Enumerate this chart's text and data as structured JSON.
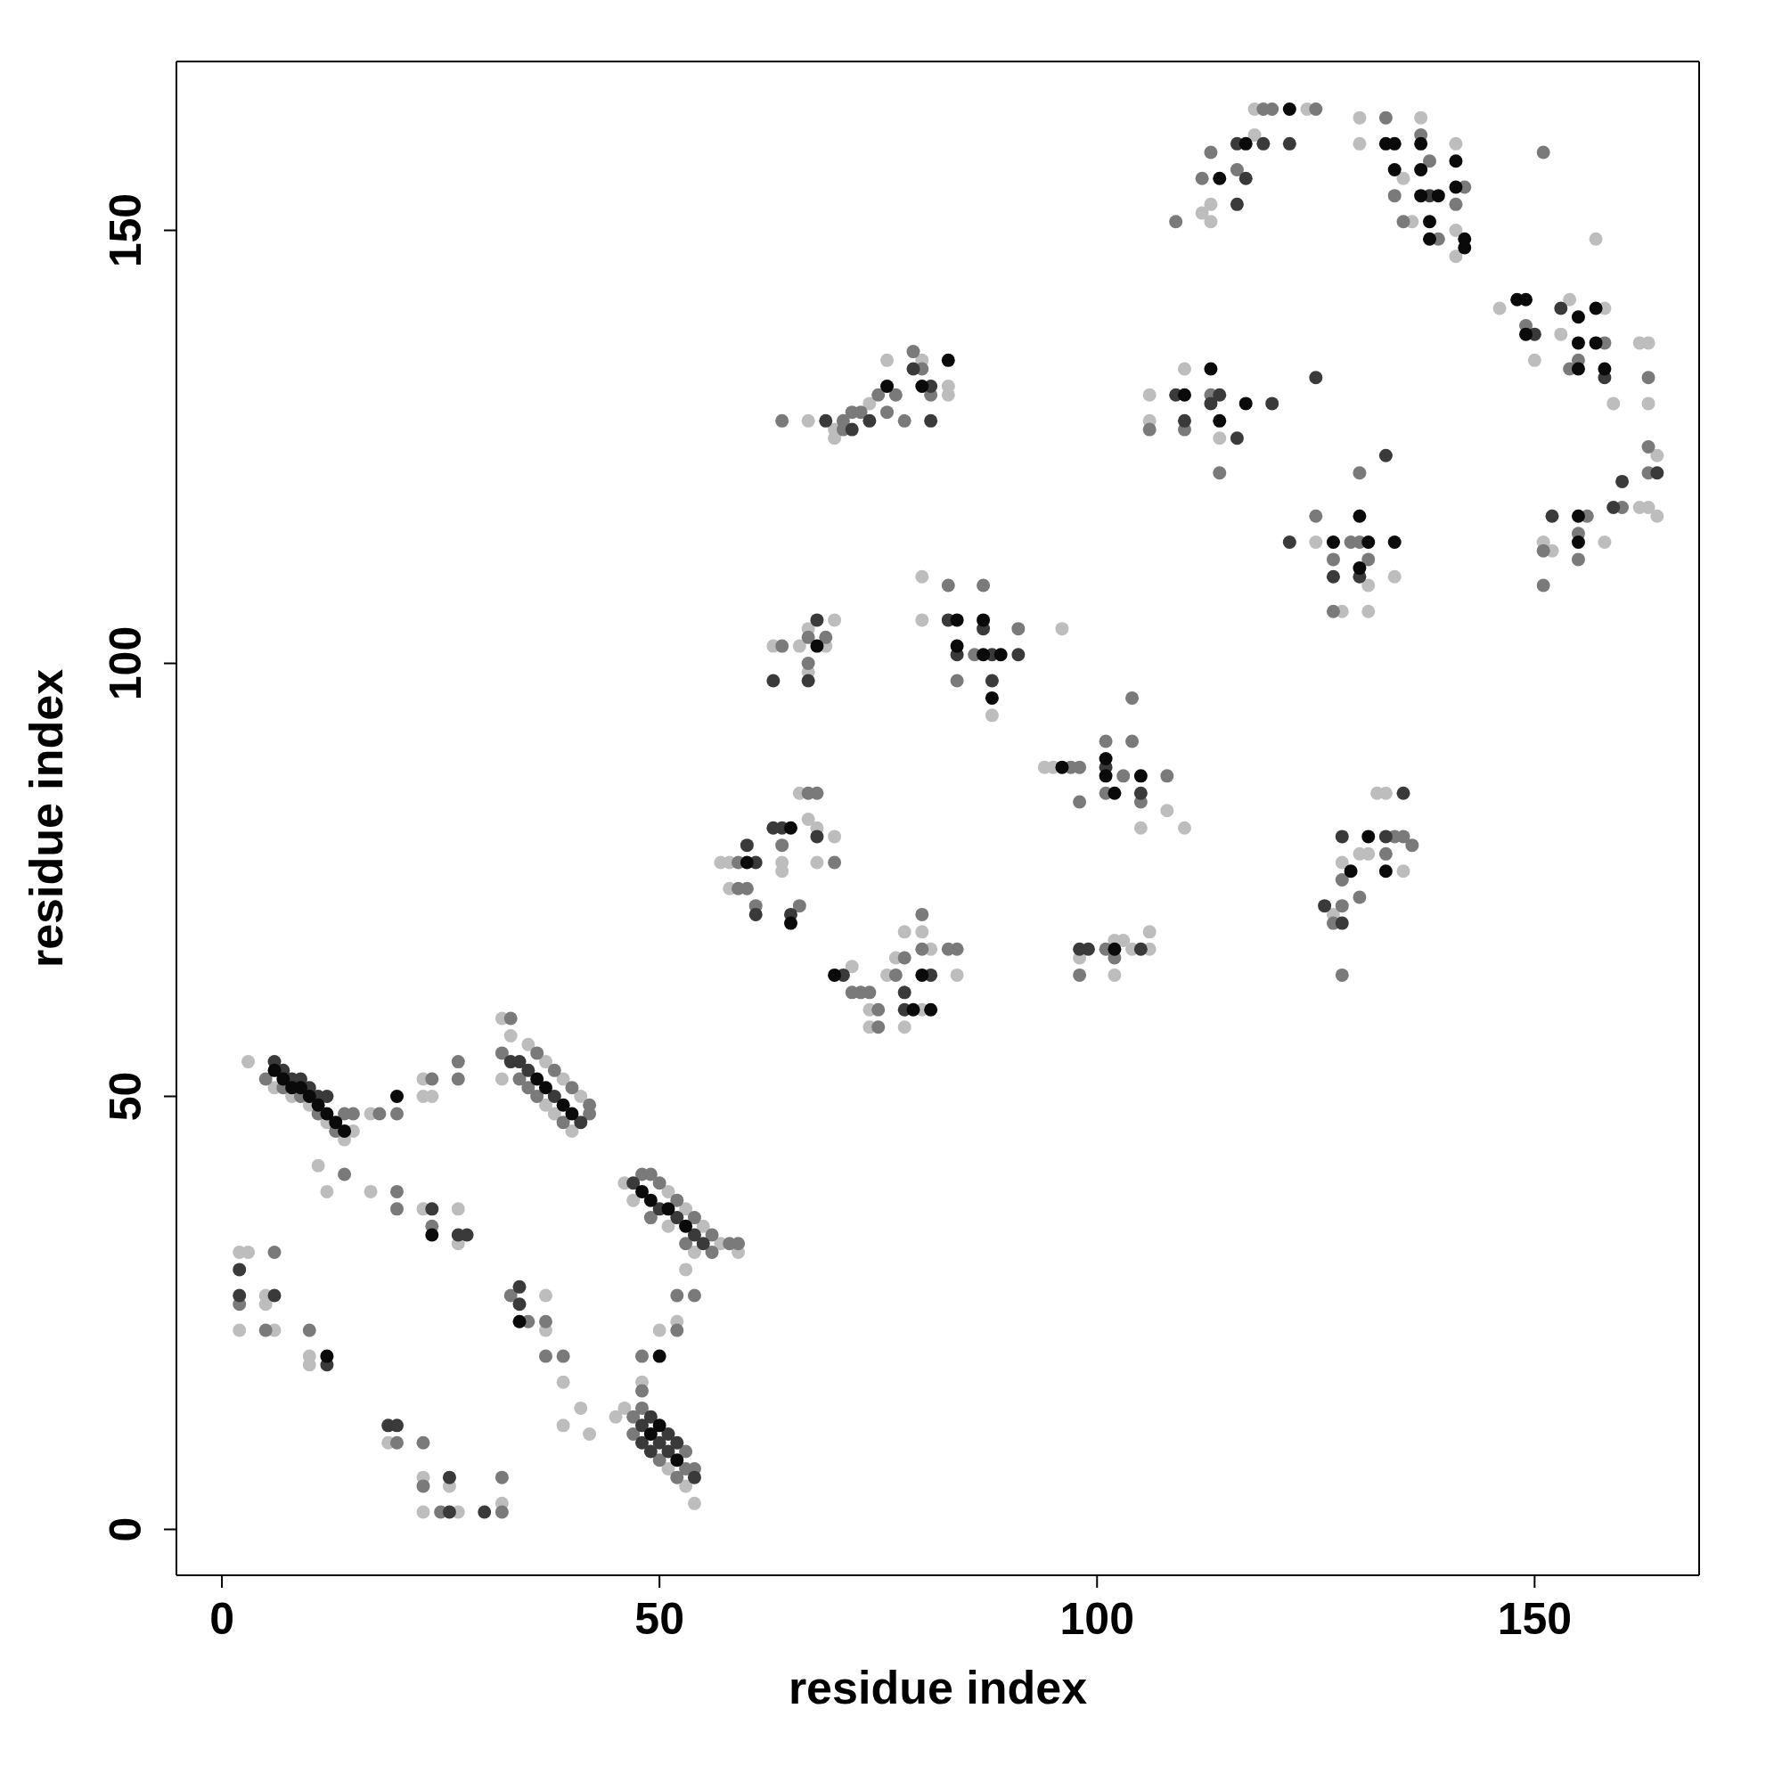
{
  "chart_data": {
    "type": "scatter",
    "xlabel": "residue index",
    "ylabel": "residue index",
    "xlim": [
      -5.2,
      168.8
    ],
    "ylim": [
      -5.3,
      169.5
    ],
    "xticks": [
      0,
      50,
      100,
      150
    ],
    "yticks": [
      0,
      50,
      100,
      150
    ],
    "marker": "circle",
    "series": [
      {
        "color": "#bdbdbd",
        "x": [
          3,
          6,
          8,
          10,
          12,
          14,
          15,
          17,
          23,
          23,
          24,
          11,
          12,
          17,
          23,
          27,
          27,
          32,
          33,
          35,
          37,
          39,
          41,
          37,
          38,
          40,
          32,
          46,
          51,
          53,
          55,
          57,
          59,
          47,
          51,
          54,
          2,
          3,
          2,
          5,
          5,
          6,
          10,
          10,
          19,
          23,
          23,
          26,
          27,
          32,
          37,
          37,
          39,
          39,
          41,
          42,
          45,
          46,
          51,
          53,
          54,
          48,
          50,
          52,
          53,
          57,
          58,
          58,
          64,
          64,
          66,
          67,
          68,
          70,
          68,
          72,
          74,
          74,
          76,
          77,
          78,
          78,
          80,
          81,
          84,
          80,
          63,
          66,
          67,
          67,
          70,
          69,
          80,
          80,
          88,
          96,
          94,
          95,
          105,
          108,
          110,
          98,
          102,
          102,
          103,
          104,
          106,
          106,
          127,
          128,
          130,
          131,
          132,
          133,
          135,
          125,
          128,
          131,
          131,
          134,
          106,
          106,
          110,
          114,
          112,
          113,
          113,
          118,
          118,
          124,
          130,
          130,
          135,
          136,
          137,
          141,
          141,
          141,
          157,
          146,
          150,
          153,
          154,
          158,
          159,
          162,
          163,
          163,
          164,
          163,
          164,
          151,
          152,
          158,
          162,
          67,
          70,
          70,
          74,
          80,
          83,
          83,
          76
        ],
        "values": [
          54,
          51,
          50,
          49,
          47,
          45,
          46,
          48,
          52,
          50,
          50,
          42,
          39,
          39,
          37,
          37,
          33,
          59,
          57,
          56,
          54,
          52,
          50,
          49,
          48,
          46,
          52,
          40,
          39,
          37,
          35,
          33,
          32,
          38,
          35,
          32,
          32,
          32,
          23,
          27,
          26,
          23,
          20,
          19,
          10,
          6,
          2,
          5,
          2,
          3,
          27,
          23,
          17,
          12,
          14,
          11,
          13,
          14,
          7,
          5,
          3,
          17,
          23,
          24,
          30,
          77,
          77,
          74,
          77,
          76,
          85,
          82,
          81,
          80,
          77,
          65,
          60,
          58,
          64,
          66,
          69,
          58,
          69,
          67,
          64,
          60,
          102,
          102,
          104,
          99,
          105,
          102,
          110,
          105,
          94,
          104,
          88,
          88,
          81,
          83,
          81,
          66,
          68,
          64,
          68,
          67,
          69,
          67,
          71,
          77,
          78,
          78,
          85,
          85,
          76,
          114,
          106,
          109,
          106,
          110,
          131,
          128,
          134,
          126,
          152,
          151,
          153,
          161,
          164,
          164,
          163,
          160,
          156,
          151,
          163,
          160,
          150,
          147,
          149,
          141,
          135,
          138,
          142,
          141,
          130,
          137,
          137,
          130,
          124,
          118,
          117,
          114,
          113,
          114,
          118,
          128,
          127,
          126,
          130,
          135,
          132,
          131,
          135
        ]
      },
      {
        "color": "#7a7a7a",
        "x": [
          5,
          7,
          9,
          11,
          13,
          14,
          15,
          18,
          20,
          24,
          27,
          27,
          14,
          20,
          20,
          24,
          33,
          32,
          36,
          38,
          40,
          34,
          35,
          36,
          39,
          42,
          42,
          48,
          49,
          50,
          52,
          54,
          56,
          58,
          59,
          49,
          53,
          56,
          2,
          6,
          5,
          10,
          20,
          23,
          23,
          25,
          32,
          32,
          33,
          35,
          37,
          37,
          39,
          47,
          53,
          47,
          50,
          52,
          48,
          53,
          54,
          48,
          48,
          52,
          52,
          54,
          59,
          59,
          60,
          61,
          64,
          66,
          67,
          68,
          70,
          72,
          73,
          74,
          75,
          75,
          77,
          78,
          80,
          80,
          83,
          84,
          64,
          67,
          67,
          69,
          83,
          84,
          86,
          87,
          91,
          97,
          98,
          98,
          101,
          101,
          103,
          104,
          104,
          105,
          108,
          98,
          101,
          102,
          127,
          128,
          128,
          128,
          130,
          133,
          134,
          135,
          136,
          125,
          127,
          127,
          129,
          130,
          131,
          130,
          106,
          110,
          113,
          114,
          109,
          112,
          113,
          116,
          119,
          120,
          125,
          133,
          134,
          135,
          137,
          138,
          139,
          141,
          142,
          151,
          149,
          155,
          154,
          158,
          163,
          163,
          163,
          151,
          151,
          155,
          155,
          156,
          160,
          64,
          71,
          71,
          72,
          73,
          75,
          76,
          77,
          78,
          79,
          80,
          81
        ],
        "values": [
          52,
          51,
          50,
          48,
          46,
          48,
          48,
          48,
          48,
          52,
          54,
          52,
          41,
          39,
          37,
          35,
          59,
          55,
          55,
          53,
          51,
          52,
          51,
          50,
          47,
          48,
          49,
          41,
          41,
          40,
          38,
          36,
          34,
          33,
          33,
          36,
          33,
          32,
          26,
          32,
          23,
          23,
          10,
          10,
          5,
          2,
          6,
          2,
          27,
          24,
          24,
          20,
          20,
          13,
          7,
          11,
          8,
          6,
          14,
          9,
          7,
          16,
          20,
          23,
          27,
          27,
          77,
          74,
          74,
          72,
          79,
          72,
          85,
          85,
          77,
          62,
          62,
          62,
          60,
          58,
          64,
          66,
          71,
          67,
          67,
          67,
          102,
          103,
          100,
          103,
          109,
          98,
          101,
          109,
          104,
          88,
          88,
          84,
          91,
          85,
          87,
          91,
          96,
          84,
          87,
          64,
          67,
          66,
          70,
          72,
          75,
          64,
          73,
          78,
          80,
          80,
          79,
          117,
          112,
          106,
          114,
          114,
          112,
          122,
          127,
          127,
          131,
          122,
          151,
          156,
          159,
          157,
          164,
          164,
          164,
          163,
          154,
          151,
          161,
          158,
          149,
          153,
          155,
          159,
          139,
          135,
          134,
          137,
          133,
          125,
          122,
          113,
          109,
          115,
          112,
          117,
          118,
          128,
          127,
          128,
          129,
          129,
          131,
          129,
          131,
          128,
          136,
          134,
          131
        ]
      },
      {
        "color": "#3a3a3a",
        "x": [
          6,
          7,
          8,
          9,
          10,
          11,
          12,
          24,
          27,
          28,
          33,
          34,
          35,
          38,
          41,
          47,
          50,
          52,
          54,
          55,
          2,
          2,
          6,
          12,
          19,
          20,
          26,
          26,
          30,
          34,
          34,
          48,
          50,
          51,
          54,
          48,
          49,
          49,
          51,
          52,
          60,
          61,
          61,
          63,
          64,
          65,
          68,
          71,
          78,
          78,
          81,
          63,
          67,
          68,
          83,
          84,
          87,
          88,
          88,
          91,
          101,
          105,
          98,
          99,
          105,
          126,
          128,
          128,
          133,
          135,
          122,
          127,
          130,
          133,
          109,
          110,
          113,
          114,
          116,
          120,
          125,
          116,
          116,
          117,
          119,
          122,
          138,
          150,
          153,
          158,
          164,
          152,
          159,
          160,
          69,
          72,
          74,
          81,
          79,
          81
        ],
        "values": [
          54,
          53,
          52,
          52,
          51,
          50,
          50,
          37,
          34,
          34,
          54,
          54,
          53,
          50,
          47,
          40,
          37,
          36,
          34,
          33,
          30,
          27,
          27,
          19,
          12,
          12,
          6,
          2,
          2,
          28,
          26,
          12,
          10,
          9,
          6,
          10,
          9,
          13,
          11,
          10,
          79,
          77,
          71,
          81,
          81,
          71,
          80,
          64,
          62,
          60,
          64,
          98,
          98,
          105,
          105,
          101,
          104,
          101,
          98,
          101,
          88,
          85,
          67,
          67,
          67,
          72,
          70,
          80,
          80,
          85,
          114,
          110,
          110,
          124,
          131,
          128,
          130,
          131,
          126,
          130,
          133,
          153,
          160,
          156,
          160,
          160,
          154,
          138,
          141,
          133,
          122,
          117,
          118,
          121,
          128,
          127,
          128,
          132,
          134,
          128
        ]
      },
      {
        "color": "#0a0a0a",
        "x": [
          6,
          7,
          8,
          9,
          10,
          11,
          12,
          13,
          14,
          20,
          24,
          12,
          34,
          36,
          37,
          39,
          40,
          48,
          49,
          51,
          53,
          49,
          52,
          50,
          50,
          60,
          65,
          65,
          70,
          79,
          80,
          81,
          68,
          84,
          84,
          87,
          87,
          88,
          89,
          96,
          101,
          101,
          102,
          105,
          102,
          129,
          131,
          133,
          127,
          130,
          130,
          131,
          134,
          110,
          113,
          114,
          117,
          114,
          117,
          122,
          133,
          134,
          134,
          137,
          137,
          137,
          138,
          138,
          139,
          141,
          141,
          142,
          142,
          148,
          149,
          149,
          155,
          155,
          155,
          157,
          157,
          158,
          155,
          155,
          76,
          80,
          83
        ],
        "values": [
          53,
          52,
          51,
          51,
          50,
          49,
          48,
          47,
          46,
          50,
          34,
          20,
          24,
          52,
          51,
          49,
          48,
          39,
          38,
          37,
          35,
          11,
          8,
          12,
          20,
          77,
          81,
          70,
          64,
          60,
          64,
          60,
          102,
          105,
          102,
          105,
          101,
          96,
          101,
          88,
          89,
          87,
          85,
          87,
          67,
          76,
          80,
          76,
          114,
          117,
          111,
          114,
          114,
          131,
          134,
          128,
          130,
          156,
          160,
          164,
          160,
          160,
          157,
          160,
          157,
          154,
          151,
          149,
          154,
          158,
          155,
          149,
          148,
          142,
          142,
          138,
          140,
          137,
          134,
          141,
          137,
          134,
          117,
          114,
          132,
          132,
          135
        ]
      }
    ]
  }
}
